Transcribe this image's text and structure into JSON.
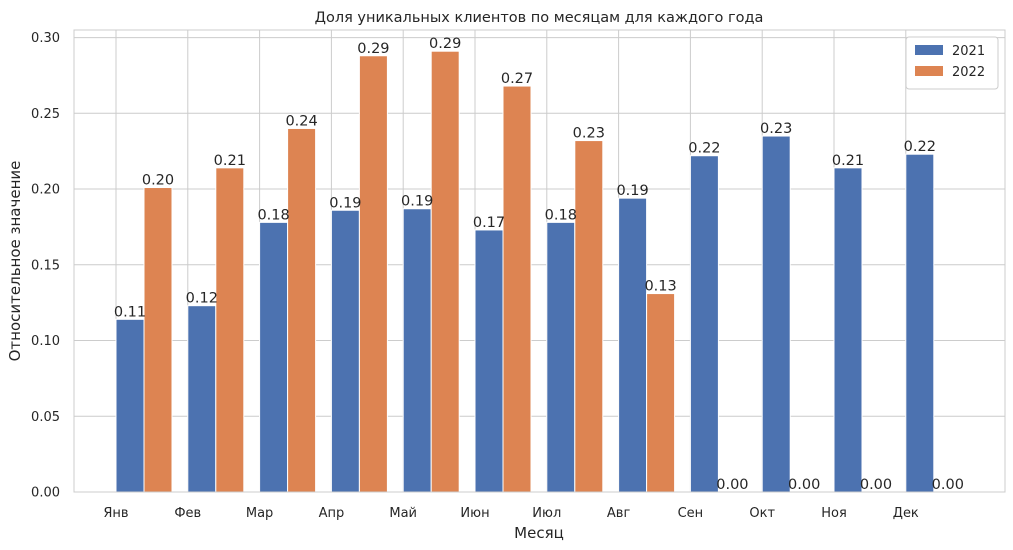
{
  "chart_data": {
    "type": "bar",
    "title": "Доля уникальных клиентов по месяцам для каждого года",
    "xlabel": "Месяц",
    "ylabel": "Относительное значение",
    "categories": [
      "Янв",
      "Фев",
      "Мар",
      "Апр",
      "Май",
      "Июн",
      "Июл",
      "Авг",
      "Сен",
      "Окт",
      "Ноя",
      "Дек"
    ],
    "series": [
      {
        "name": "2021",
        "color": "#4c72b0",
        "values": [
          0.114,
          0.123,
          0.178,
          0.186,
          0.187,
          0.173,
          0.178,
          0.194,
          0.222,
          0.235,
          0.214,
          0.223
        ],
        "labels": [
          "0.11",
          "0.12",
          "0.18",
          "0.19",
          "0.19",
          "0.17",
          "0.18",
          "0.19",
          "0.22",
          "0.23",
          "0.21",
          "0.22"
        ]
      },
      {
        "name": "2022",
        "color": "#dd8452",
        "values": [
          0.201,
          0.214,
          0.24,
          0.288,
          0.291,
          0.268,
          0.232,
          0.131,
          0,
          0,
          0,
          0
        ],
        "labels": [
          "0.20",
          "0.21",
          "0.24",
          "0.29",
          "0.29",
          "0.27",
          "0.23",
          "0.13",
          "0.00",
          "0.00",
          "0.00",
          "0.00"
        ]
      }
    ],
    "ylim": [
      0,
      0.305
    ],
    "yticks": [
      0.0,
      0.05,
      0.1,
      0.15,
      0.2,
      0.25,
      0.3
    ],
    "ytick_labels": [
      "0.00",
      "0.05",
      "0.10",
      "0.15",
      "0.20",
      "0.25",
      "0.30"
    ],
    "grid": true,
    "legend_position": "top-right"
  }
}
